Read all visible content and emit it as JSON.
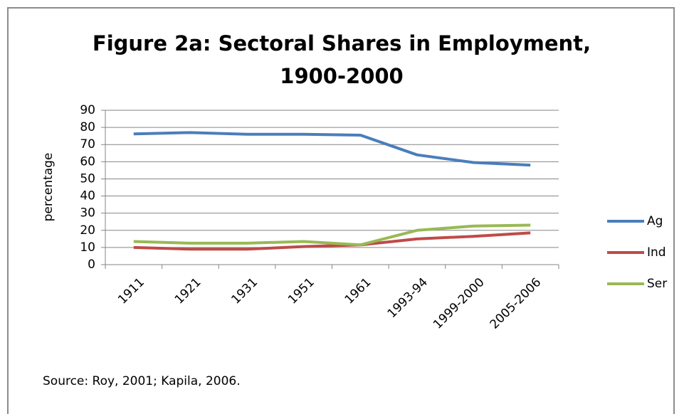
{
  "chart_data": {
    "type": "line",
    "title": "Figure 2a: Sectoral Shares in Employment, 1900-2000",
    "y_label": "percentage",
    "annotations": [
      "Source: Roy, 2001; Kapila, 2006."
    ],
    "categories": [
      "1911",
      "1921",
      "1931",
      "1951",
      "1961",
      "1993-94",
      "1999-2000",
      "2005-2006"
    ],
    "series": [
      {
        "name": "Ag",
        "color": "#4a7ebb",
        "values": [
          76.2,
          77,
          76,
          76,
          75.5,
          64,
          59.5,
          58
        ]
      },
      {
        "name": "Ind",
        "color": "#be4b48",
        "values": [
          10,
          9,
          9,
          10.5,
          11.5,
          15,
          16.5,
          18.5
        ]
      },
      {
        "name": "Ser",
        "color": "#98b954",
        "values": [
          13.5,
          12.5,
          12.5,
          13.5,
          11.5,
          20,
          22.5,
          23
        ]
      }
    ],
    "ylim": [
      0,
      90
    ],
    "yticks": [
      0,
      10,
      20,
      30,
      40,
      50,
      60,
      70,
      80,
      90
    ],
    "grid": true,
    "legend": "right"
  }
}
